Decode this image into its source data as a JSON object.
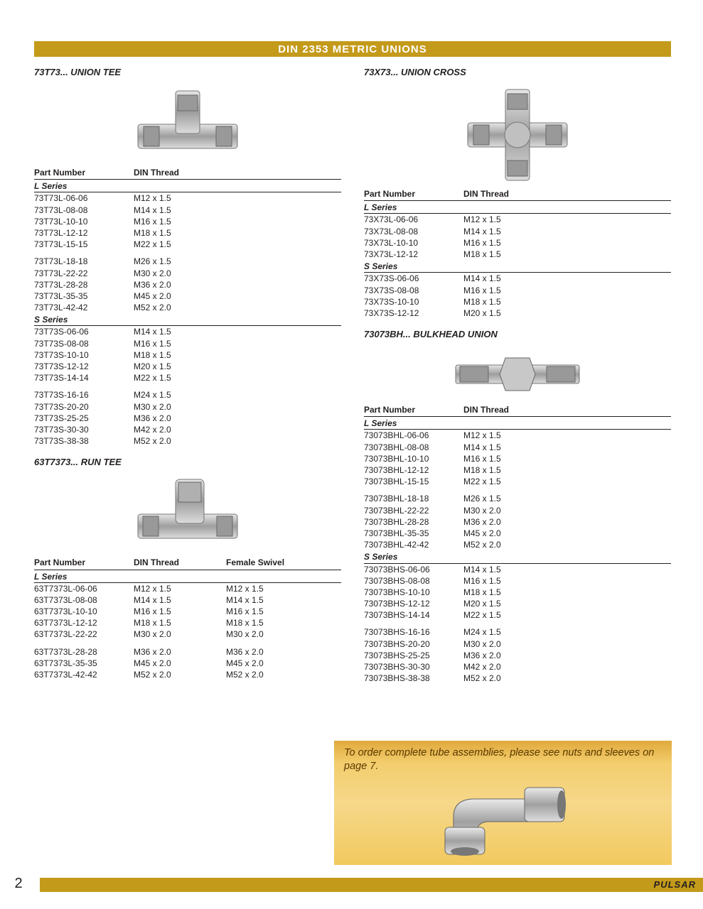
{
  "colors": {
    "banner_bg": "#c49a1a",
    "banner_text": "#ffffff",
    "text": "#231f20",
    "note_bg_top": "#e0a93c",
    "note_bg_bottom": "#f2c95f",
    "note_text": "#5a3a00",
    "fitting_fill": "#b8b8b8",
    "fitting_stroke": "#7a7a7a"
  },
  "banner_title": "DIN 2353 METRIC UNIONS",
  "page_number": "2",
  "brand": "PULSAR",
  "note_text": "To order complete tube assemblies, please see nuts and sleeves on page 7.",
  "headers": {
    "part": "Part Number",
    "din": "DIN Thread",
    "swivel": "Female Swivel",
    "l_series": "L Series",
    "s_series": "S Series"
  },
  "sections": {
    "union_tee": {
      "title": "73T73... UNION TEE",
      "l_series": [
        {
          "pn": "73T73L-06-06",
          "din": "M12 x 1.5"
        },
        {
          "pn": "73T73L-08-08",
          "din": "M14 x 1.5"
        },
        {
          "pn": "73T73L-10-10",
          "din": "M16 x 1.5"
        },
        {
          "pn": "73T73L-12-12",
          "din": "M18 x 1.5"
        },
        {
          "pn": "73T73L-15-15",
          "din": "M22 x 1.5"
        }
      ],
      "l_series2": [
        {
          "pn": "73T73L-18-18",
          "din": "M26 x 1.5"
        },
        {
          "pn": "73T73L-22-22",
          "din": "M30 x 2.0"
        },
        {
          "pn": "73T73L-28-28",
          "din": "M36 x 2.0"
        },
        {
          "pn": "73T73L-35-35",
          "din": "M45 x 2.0"
        },
        {
          "pn": "73T73L-42-42",
          "din": "M52 x 2.0"
        }
      ],
      "s_series": [
        {
          "pn": "73T73S-06-06",
          "din": "M14 x 1.5"
        },
        {
          "pn": "73T73S-08-08",
          "din": "M16 x 1.5"
        },
        {
          "pn": "73T73S-10-10",
          "din": "M18 x 1.5"
        },
        {
          "pn": "73T73S-12-12",
          "din": "M20 x 1.5"
        },
        {
          "pn": "73T73S-14-14",
          "din": "M22 x 1.5"
        }
      ],
      "s_series2": [
        {
          "pn": "73T73S-16-16",
          "din": "M24 x 1.5"
        },
        {
          "pn": "73T73S-20-20",
          "din": "M30 x 2.0"
        },
        {
          "pn": "73T73S-25-25",
          "din": "M36 x 2.0"
        },
        {
          "pn": "73T73S-30-30",
          "din": "M42 x 2.0"
        },
        {
          "pn": "73T73S-38-38",
          "din": "M52 x 2.0"
        }
      ]
    },
    "run_tee": {
      "title": "63T7373... RUN TEE",
      "l_series": [
        {
          "pn": "63T7373L-06-06",
          "din": "M12 x 1.5",
          "sw": "M12 x 1.5"
        },
        {
          "pn": "63T7373L-08-08",
          "din": "M14 x 1.5",
          "sw": "M14 x 1.5"
        },
        {
          "pn": "63T7373L-10-10",
          "din": "M16 x 1.5",
          "sw": "M16 x 1.5"
        },
        {
          "pn": "63T7373L-12-12",
          "din": "M18 x 1.5",
          "sw": "M18 x 1.5"
        },
        {
          "pn": "63T7373L-22-22",
          "din": "M30 x 2.0",
          "sw": "M30 x 2.0"
        }
      ],
      "l_series2": [
        {
          "pn": "63T7373L-28-28",
          "din": "M36 x 2.0",
          "sw": "M36 x 2.0"
        },
        {
          "pn": "63T7373L-35-35",
          "din": "M45 x 2.0",
          "sw": "M45 x 2.0"
        },
        {
          "pn": "63T7373L-42-42",
          "din": "M52 x 2.0",
          "sw": "M52 x 2.0"
        }
      ]
    },
    "union_cross": {
      "title": "73X73... UNION CROSS",
      "l_series": [
        {
          "pn": "73X73L-06-06",
          "din": "M12 x 1.5"
        },
        {
          "pn": "73X73L-08-08",
          "din": "M14 x 1.5"
        },
        {
          "pn": "73X73L-10-10",
          "din": "M16 x 1.5"
        },
        {
          "pn": "73X73L-12-12",
          "din": "M18 x 1.5"
        }
      ],
      "s_series": [
        {
          "pn": "73X73S-06-06",
          "din": "M14 x 1.5"
        },
        {
          "pn": "73X73S-08-08",
          "din": "M16 x 1.5"
        },
        {
          "pn": "73X73S-10-10",
          "din": "M18 x 1.5"
        },
        {
          "pn": "73X73S-12-12",
          "din": "M20 x 1.5"
        }
      ]
    },
    "bulkhead": {
      "title": "73073BH... BULKHEAD UNION",
      "l_series": [
        {
          "pn": "73073BHL-06-06",
          "din": "M12 x 1.5"
        },
        {
          "pn": "73073BHL-08-08",
          "din": "M14 x 1.5"
        },
        {
          "pn": "73073BHL-10-10",
          "din": "M16 x 1.5"
        },
        {
          "pn": "73073BHL-12-12",
          "din": "M18 x 1.5"
        },
        {
          "pn": "73073BHL-15-15",
          "din": "M22 x 1.5"
        }
      ],
      "l_series2": [
        {
          "pn": "73073BHL-18-18",
          "din": "M26 x 1.5"
        },
        {
          "pn": "73073BHL-22-22",
          "din": "M30 x 2.0"
        },
        {
          "pn": "73073BHL-28-28",
          "din": "M36 x 2.0"
        },
        {
          "pn": "73073BHL-35-35",
          "din": "M45 x 2.0"
        },
        {
          "pn": "73073BHL-42-42",
          "din": "M52 x 2.0"
        }
      ],
      "s_series": [
        {
          "pn": "73073BHS-06-06",
          "din": "M14 x 1.5"
        },
        {
          "pn": "73073BHS-08-08",
          "din": "M16 x 1.5"
        },
        {
          "pn": "73073BHS-10-10",
          "din": "M18 x 1.5"
        },
        {
          "pn": "73073BHS-12-12",
          "din": "M20 x 1.5"
        },
        {
          "pn": "73073BHS-14-14",
          "din": "M22 x 1.5"
        }
      ],
      "s_series2": [
        {
          "pn": "73073BHS-16-16",
          "din": "M24 x 1.5"
        },
        {
          "pn": "73073BHS-20-20",
          "din": "M30 x 2.0"
        },
        {
          "pn": "73073BHS-25-25",
          "din": "M36 x 2.0"
        },
        {
          "pn": "73073BHS-30-30",
          "din": "M42 x 2.0"
        },
        {
          "pn": "73073BHS-38-38",
          "din": "M52 x 2.0"
        }
      ]
    }
  }
}
